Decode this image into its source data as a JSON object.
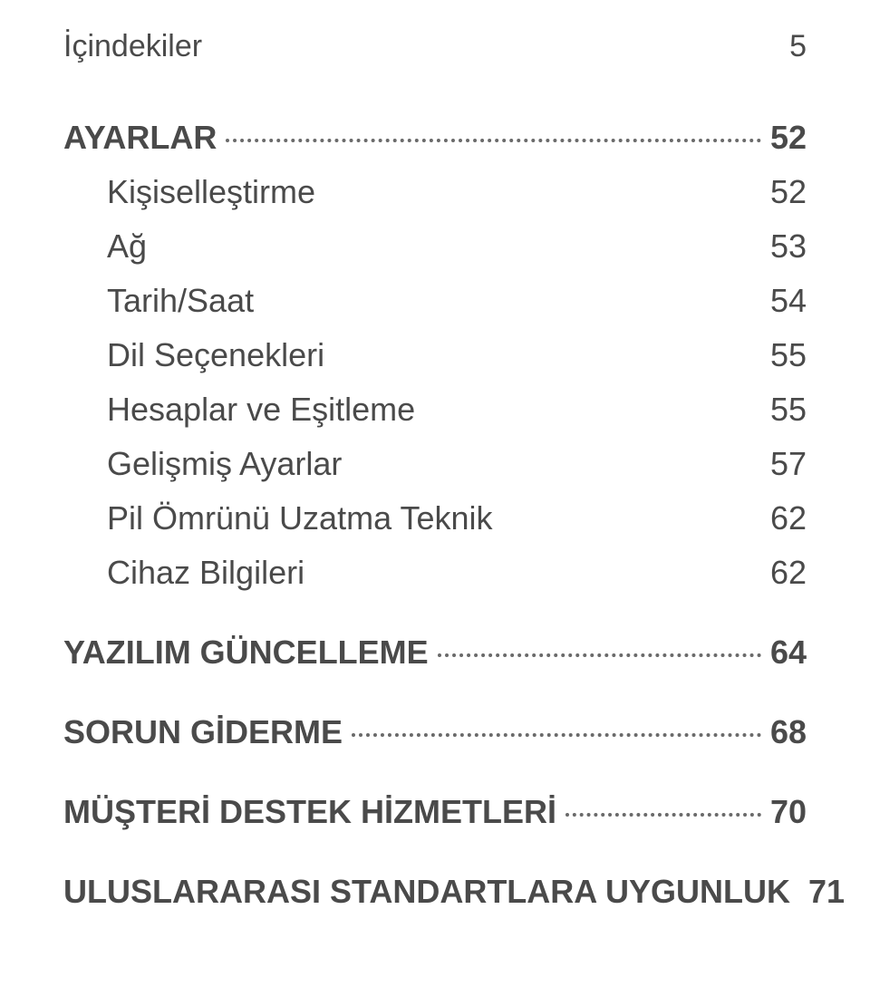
{
  "header": {
    "title": "İçindekiler",
    "page": "5"
  },
  "sections": [
    {
      "title": "AYARLAR",
      "page": "52",
      "items": [
        {
          "label": "Kişiselleştirme",
          "page": "52"
        },
        {
          "label": "Ağ",
          "page": "53"
        },
        {
          "label": "Tarih/Saat",
          "page": "54"
        },
        {
          "label": "Dil Seçenekleri",
          "page": "55"
        },
        {
          "label": "Hesaplar ve Eşitleme",
          "page": "55"
        },
        {
          "label": "Gelişmiş Ayarlar",
          "page": "57"
        },
        {
          "label": "Pil Ömrünü Uzatma Teknik",
          "page": "62"
        },
        {
          "label": "Cihaz Bilgileri",
          "page": "62"
        }
      ]
    },
    {
      "title": "YAZILIM GÜNCELLEME",
      "page": "64",
      "items": []
    },
    {
      "title": "SORUN GİDERME",
      "page": "68",
      "items": []
    },
    {
      "title": "MÜŞTERİ DESTEK HİZMETLERİ",
      "page": "70",
      "items": []
    },
    {
      "title": "ULUSLARARASI STANDARTLARA UYGUNLUK",
      "page": "71",
      "items": []
    }
  ],
  "colors": {
    "text": "#4a4a4a",
    "background": "#ffffff",
    "leader": "#6a6a6a"
  },
  "typography": {
    "header_fontsize": 34,
    "section_fontsize": 36,
    "sub_fontsize": 36,
    "section_weight": 700,
    "sub_weight": 400
  }
}
